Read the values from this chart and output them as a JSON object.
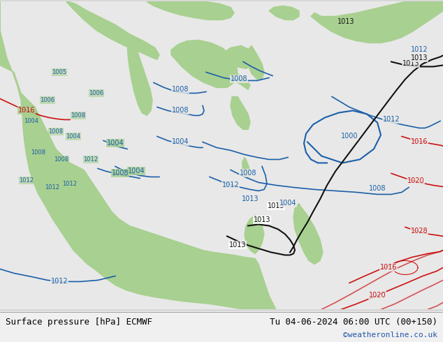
{
  "title_left": "Surface pressure [hPa] ECMWF",
  "title_right": "Tu 04-06-2024 06:00 UTC (00+150)",
  "credit": "©weatheronline.co.uk",
  "bg_color": "#d8d8d8",
  "land_color": "#a8d090",
  "sea_color": "#e8e8e8",
  "blue_isobar_color": "#1a5fa8",
  "black_isobar_color": "#111111",
  "red_isobar_color": "#cc1111",
  "footer_bg": "#f0f0f0",
  "figsize": [
    6.34,
    4.9
  ],
  "dpi": 100
}
